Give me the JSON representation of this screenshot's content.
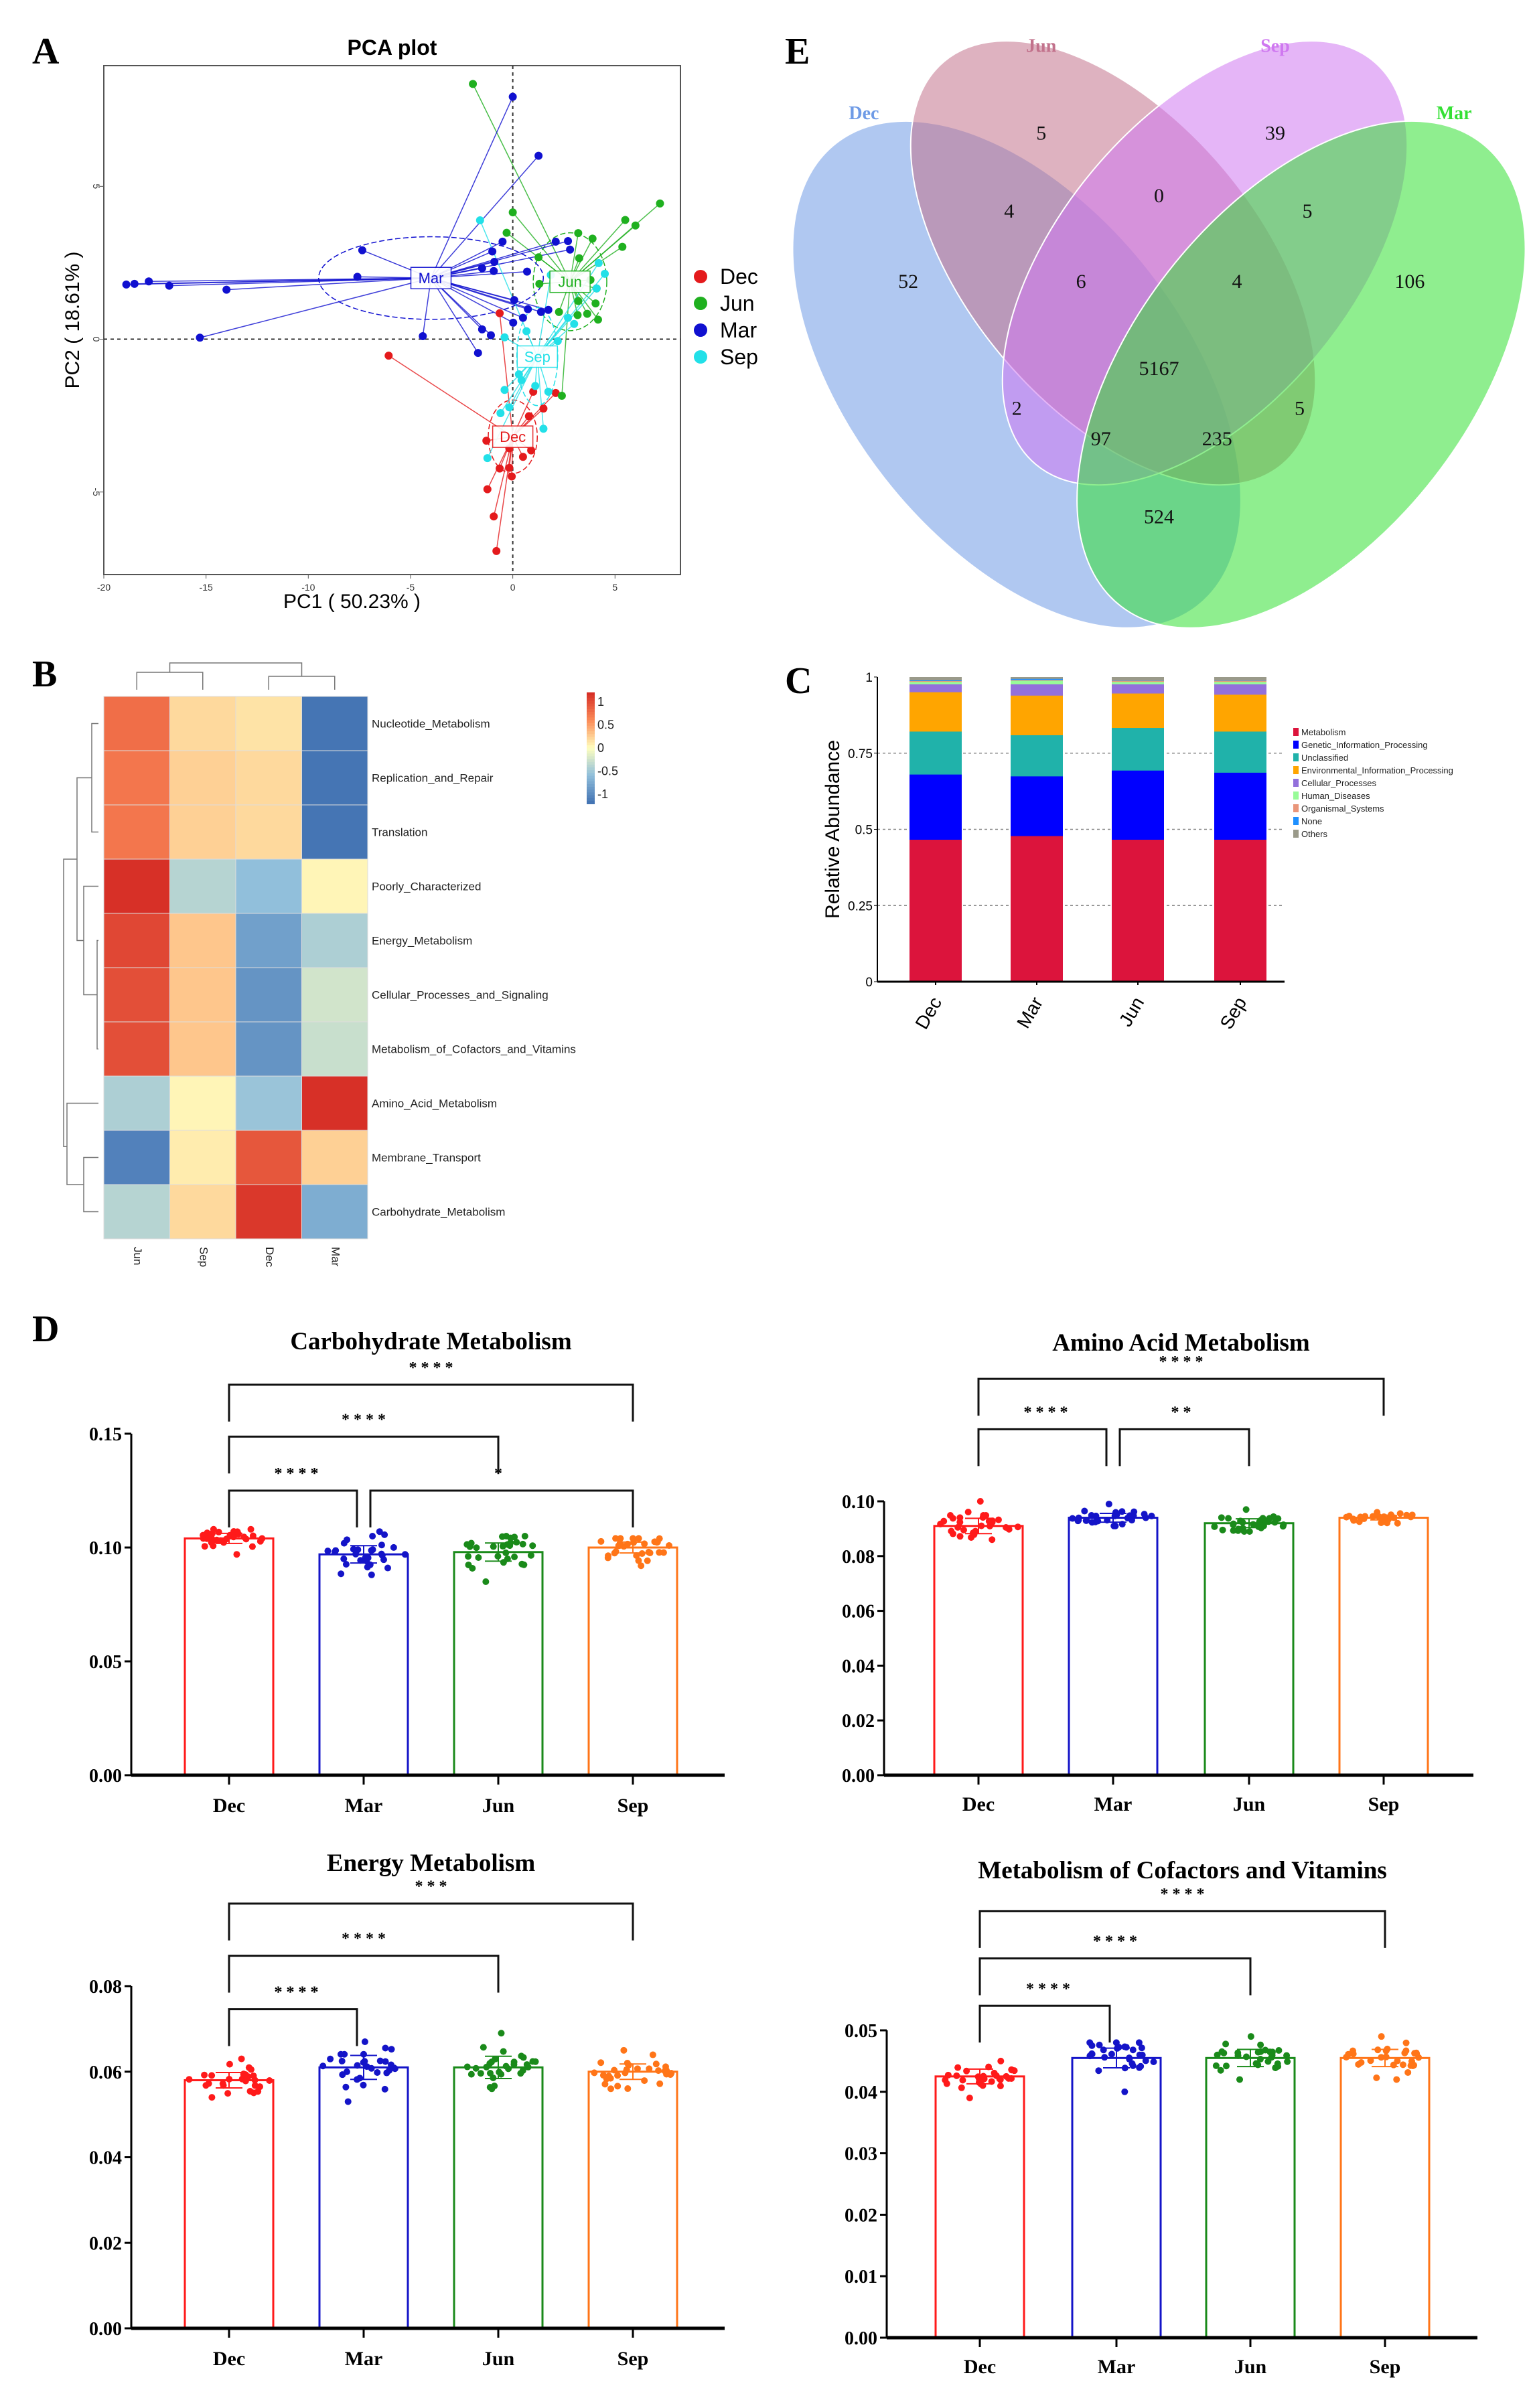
{
  "panel_labels": {
    "a": "A",
    "b": "B",
    "c": "C",
    "d": "D",
    "e": "E"
  },
  "group_colors": {
    "Dec": "#e41a1c",
    "Jun": "#1fb01f",
    "Mar": "#1010d0",
    "Sep": "#22e0e8"
  },
  "chart_data": [
    {
      "id": "pca",
      "type": "scatter",
      "title": "PCA plot",
      "xlabel": "PC1 ( 50.23% )",
      "ylabel": "PC2 ( 18.61% )",
      "xlim": [
        -20,
        8.2
      ],
      "ylim": [
        -7.7,
        8.95
      ],
      "xticks": [
        "-20",
        "-15",
        "-10",
        "-5",
        "0",
        "5"
      ],
      "yticks": [
        "-5",
        "0",
        "5"
      ],
      "legend": "right",
      "reference_lines": "dashed at x=0 and y=0",
      "series": [
        {
          "name": "Dec",
          "color": "#e41a1c",
          "centroid": [
            0,
            -3.19
          ],
          "points": [
            [
              -6.07,
              -0.54
            ],
            [
              -0.64,
              0.85
            ],
            [
              1.0,
              -1.72
            ],
            [
              2.1,
              -1.76
            ],
            [
              1.5,
              -2.27
            ],
            [
              0.79,
              -2.52
            ],
            [
              -1.29,
              -3.32
            ],
            [
              -0.17,
              -3.57
            ],
            [
              0.9,
              -3.64
            ],
            [
              0.5,
              -3.85
            ],
            [
              -0.64,
              -4.23
            ],
            [
              -0.17,
              -4.21
            ],
            [
              -0.05,
              -4.49
            ],
            [
              -1.24,
              -4.91
            ],
            [
              -0.93,
              -5.8
            ],
            [
              -0.8,
              -6.93
            ]
          ]
        },
        {
          "name": "Jun",
          "color": "#1fb01f",
          "centroid": [
            2.8,
            1.88
          ],
          "points": [
            [
              -1.95,
              8.35
            ],
            [
              0,
              4.15
            ],
            [
              -0.3,
              3.48
            ],
            [
              7.2,
              4.44
            ],
            [
              5.5,
              3.9
            ],
            [
              6,
              3.72
            ],
            [
              5.36,
              3.02
            ],
            [
              3.2,
              3.47
            ],
            [
              3.9,
              3.29
            ],
            [
              3.25,
              2.65
            ],
            [
              1.26,
              2.68
            ],
            [
              1.3,
              1.81
            ],
            [
              3.8,
              1.94
            ],
            [
              4.1,
              1.66
            ],
            [
              3.2,
              1.25
            ],
            [
              4.05,
              1.17
            ],
            [
              4.17,
              0.64
            ],
            [
              3.64,
              0.83
            ],
            [
              3.17,
              0.79
            ],
            [
              2.26,
              0.89
            ],
            [
              2.4,
              -1.85
            ]
          ]
        },
        {
          "name": "Mar",
          "color": "#1010d0",
          "centroid": [
            -4.0,
            2.0
          ],
          "points": [
            [
              0,
              7.93
            ],
            [
              1.26,
              6.0
            ],
            [
              -7.36,
              2.91
            ],
            [
              -7.6,
              2.04
            ],
            [
              -18.9,
              1.79
            ],
            [
              -18.5,
              1.81
            ],
            [
              -17.8,
              1.89
            ],
            [
              -16.8,
              1.75
            ],
            [
              -14,
              1.62
            ],
            [
              -15.3,
              0.05
            ],
            [
              -4.4,
              0.1
            ],
            [
              -1.7,
              -0.45
            ],
            [
              -1.5,
              0.32
            ],
            [
              -1.07,
              0.13
            ],
            [
              -0.5,
              3.19
            ],
            [
              -1,
              2.87
            ],
            [
              -0.9,
              2.53
            ],
            [
              -1.5,
              2.32
            ],
            [
              -0.93,
              2.23
            ],
            [
              0.7,
              2.21
            ],
            [
              0.07,
              1.28
            ],
            [
              0.02,
              0.54
            ],
            [
              0.5,
              0.7
            ],
            [
              0.74,
              0.98
            ],
            [
              1.38,
              0.89
            ],
            [
              1.74,
              0.96
            ],
            [
              2.1,
              3.19
            ],
            [
              2.7,
              3.21
            ],
            [
              2.8,
              2.93
            ]
          ]
        },
        {
          "name": "Sep",
          "color": "#22e0e8",
          "centroid": [
            1.2,
            -0.57
          ],
          "points": [
            [
              -1.6,
              3.89
            ],
            [
              1.86,
              2.1
            ],
            [
              4.2,
              2.49
            ],
            [
              4.5,
              2.14
            ],
            [
              4.1,
              1.66
            ],
            [
              2.7,
              0.7
            ],
            [
              3,
              0.5
            ],
            [
              2.2,
              -0.06
            ],
            [
              0.67,
              0.26
            ],
            [
              -0.4,
              0.06
            ],
            [
              -0.4,
              -1.66
            ],
            [
              0.3,
              -1.15
            ],
            [
              1.1,
              -1.53
            ],
            [
              -0.6,
              -2.42
            ],
            [
              -0.17,
              -2.23
            ],
            [
              1.5,
              -2.93
            ],
            [
              -1.24,
              -3.89
            ],
            [
              0.43,
              -1.34
            ],
            [
              1.74,
              -1.72
            ]
          ]
        }
      ]
    },
    {
      "id": "heatmap",
      "type": "heatmap",
      "columns": [
        "Jun",
        "Sep",
        "Dec",
        "Mar"
      ],
      "rows": [
        "Nucleotide_Metabolism",
        "Replication_and_Repair",
        "Translation",
        "Poorly_Characterized",
        "Energy_Metabolism",
        "Cellular_Processes_and_Signaling",
        "Metabolism_of_Cofactors_and_Vitamins",
        "Amino_Acid_Metabolism",
        "Membrane_Transport",
        "Carbohydrate_Metabolism"
      ],
      "values": [
        [
          0.8,
          0.2,
          0.15,
          -1.2
        ],
        [
          0.75,
          0.25,
          0.2,
          -1.2
        ],
        [
          0.75,
          0.25,
          0.2,
          -1.2
        ],
        [
          1.2,
          -0.4,
          -0.6,
          0.05
        ],
        [
          1.05,
          0.3,
          -0.85,
          -0.45
        ],
        [
          1.0,
          0.3,
          -0.95,
          -0.25
        ],
        [
          1.0,
          0.3,
          -0.95,
          -0.3
        ],
        [
          -0.45,
          0.05,
          -0.55,
          1.2
        ],
        [
          -1.1,
          0.1,
          0.95,
          0.25
        ],
        [
          -0.4,
          0.2,
          1.15,
          -0.75
        ]
      ],
      "color_range": [
        -1.2,
        1.2
      ],
      "colorbar_ticks": [
        "1",
        "0.5",
        "0",
        "-0.5",
        "-1"
      ],
      "colorscale": [
        "#4575b4",
        "#91bfdb",
        "#ffffbf",
        "#fc8d59",
        "#d73027"
      ]
    },
    {
      "id": "stacked",
      "type": "bar",
      "stacked": true,
      "ylabel": "Relative Abundance",
      "ylim": [
        0,
        1
      ],
      "yticks": [
        "0",
        "0.25",
        "0.5",
        "0.75",
        "1"
      ],
      "grid": "dashed horizontal at 0.25, 0.5, 0.75",
      "categories": [
        "Dec",
        "Mar",
        "Jun",
        "Sep"
      ],
      "legend": "right",
      "series": [
        {
          "name": "Metabolism",
          "color": "#dc143c",
          "values": [
            0.467,
            0.479,
            0.467,
            0.467
          ]
        },
        {
          "name": "Genetic_Information_Processing",
          "color": "#0000ff",
          "values": [
            0.214,
            0.196,
            0.227,
            0.22
          ]
        },
        {
          "name": "Unclassified",
          "color": "#20b2aa",
          "values": [
            0.141,
            0.135,
            0.14,
            0.135
          ]
        },
        {
          "name": "Environmental_Information_Processing",
          "color": "#ffa500",
          "values": [
            0.129,
            0.13,
            0.113,
            0.121
          ]
        },
        {
          "name": "Cellular_Processes",
          "color": "#9370db",
          "values": [
            0.026,
            0.037,
            0.03,
            0.034
          ]
        },
        {
          "name": "Human_Diseases",
          "color": "#98fb98",
          "values": [
            0.008,
            0.012,
            0.008,
            0.008
          ]
        },
        {
          "name": "Organismal_Systems",
          "color": "#e9967a",
          "values": [
            0.003,
            0.002,
            0.004,
            0.004
          ]
        },
        {
          "name": "None",
          "color": "#1e90ff",
          "values": [
            0.002,
            0.004,
            0.001,
            0.001
          ]
        },
        {
          "name": "Others",
          "color": "#9a9a8a",
          "values": [
            0.01,
            0.005,
            0.01,
            0.01
          ]
        }
      ]
    },
    {
      "id": "venn",
      "type": "venn",
      "sets": [
        {
          "name": "Dec",
          "color": "#6f9be6"
        },
        {
          "name": "Jun",
          "color": "#c2728c"
        },
        {
          "name": "Sep",
          "color": "#cf78f0"
        },
        {
          "name": "Mar",
          "color": "#33e033"
        }
      ],
      "regions": [
        {
          "sets": [
            "Jun"
          ],
          "value": "5"
        },
        {
          "sets": [
            "Sep"
          ],
          "value": "39"
        },
        {
          "sets": [
            "Dec"
          ],
          "value": "52"
        },
        {
          "sets": [
            "Dec",
            "Jun"
          ],
          "value": "4"
        },
        {
          "sets": [
            "Jun",
            "Sep"
          ],
          "value": "0"
        },
        {
          "sets": [
            "Sep",
            "Mar"
          ],
          "value": "5"
        },
        {
          "sets": [
            "Mar"
          ],
          "value": "106"
        },
        {
          "sets": [
            "Dec",
            "Jun",
            "Sep"
          ],
          "value": "6"
        },
        {
          "sets": [
            "Jun",
            "Sep",
            "Mar"
          ],
          "value": "4"
        },
        {
          "sets": [
            "Dec",
            "Jun",
            "Sep",
            "Mar"
          ],
          "value": "5167"
        },
        {
          "sets": [
            "Dec",
            "Sep"
          ],
          "value": "2"
        },
        {
          "sets": [
            "Dec",
            "Sep",
            "Mar"
          ],
          "value": "97"
        },
        {
          "sets": [
            "Dec",
            "Jun",
            "Mar"
          ],
          "value": "235"
        },
        {
          "sets": [
            "Jun",
            "Mar"
          ],
          "value": "5"
        },
        {
          "sets": [
            "Dec",
            "Mar"
          ],
          "value": "524"
        }
      ]
    },
    {
      "id": "carb",
      "type": "bar",
      "title": "Carbohydrate Metabolism",
      "categories": [
        "Dec",
        "Mar",
        "Jun",
        "Sep"
      ],
      "colors": [
        "#ff1a1a",
        "#1414c8",
        "#1a8a1a",
        "#ff7518"
      ],
      "ylim": [
        0,
        0.15
      ],
      "yticks": [
        "0.00",
        "0.05",
        "0.10",
        "0.15"
      ],
      "means": [
        0.104,
        0.097,
        0.098,
        0.1
      ],
      "ranges": [
        [
          0.097,
          0.108
        ],
        [
          0.088,
          0.107
        ],
        [
          0.085,
          0.105
        ],
        [
          0.092,
          0.104
        ]
      ],
      "significance": [
        {
          "from": "Dec",
          "to": "Mar",
          "y": 0.125,
          "label": "* * * *"
        },
        {
          "from": "Mar",
          "to": "Sep",
          "y": 0.125,
          "label": "*",
          "label_at": "Jun"
        },
        {
          "from": "Dec",
          "to": "Jun",
          "y": 0.1487,
          "label": "* * * *"
        },
        {
          "from": "Dec",
          "to": "Sep",
          "y": 0.1715,
          "label": "* * * *"
        }
      ]
    },
    {
      "id": "amino",
      "type": "bar",
      "title": "Amino Acid Metabolism",
      "categories": [
        "Dec",
        "Mar",
        "Jun",
        "Sep"
      ],
      "colors": [
        "#ff1a1a",
        "#1414c8",
        "#1a8a1a",
        "#ff7518"
      ],
      "ylim": [
        0,
        0.1
      ],
      "yticks": [
        "0.00",
        "0.02",
        "0.04",
        "0.06",
        "0.08",
        "0.10"
      ],
      "means": [
        0.091,
        0.094,
        0.092,
        0.094
      ],
      "ranges": [
        [
          0.086,
          0.1
        ],
        [
          0.091,
          0.099
        ],
        [
          0.089,
          0.097
        ],
        [
          0.092,
          0.096
        ]
      ],
      "significance": [
        {
          "from": "Dec",
          "to": "Mar",
          "y": 0.1263,
          "label": "* * * *"
        },
        {
          "from": "Mar",
          "to": "Jun",
          "y": 0.1263,
          "label": "* *"
        },
        {
          "from": "Dec",
          "to": "Sep",
          "y": 0.1447,
          "label": "* * * *"
        }
      ]
    },
    {
      "id": "energy",
      "type": "bar",
      "title": "Energy Metabolism",
      "categories": [
        "Dec",
        "Mar",
        "Jun",
        "Sep"
      ],
      "colors": [
        "#ff1a1a",
        "#1414c8",
        "#1a8a1a",
        "#ff7518"
      ],
      "ylim": [
        0,
        0.08
      ],
      "yticks": [
        "0.00",
        "0.02",
        "0.04",
        "0.06",
        "0.08"
      ],
      "means": [
        0.058,
        0.061,
        0.061,
        0.06
      ],
      "ranges": [
        [
          0.054,
          0.063
        ],
        [
          0.053,
          0.067
        ],
        [
          0.056,
          0.069
        ],
        [
          0.056,
          0.065
        ]
      ],
      "significance": [
        {
          "from": "Dec",
          "to": "Mar",
          "y": 0.0746,
          "label": "* * * *"
        },
        {
          "from": "Dec",
          "to": "Jun",
          "y": 0.0871,
          "label": "* * * *"
        },
        {
          "from": "Dec",
          "to": "Sep",
          "y": 0.0993,
          "label": "* * *"
        }
      ]
    },
    {
      "id": "cofactors",
      "type": "bar",
      "title": "Metabolism of Cofactors and Vitamins",
      "categories": [
        "Dec",
        "Mar",
        "Jun",
        "Sep"
      ],
      "colors": [
        "#ff1a1a",
        "#1414c8",
        "#1a8a1a",
        "#ff7518"
      ],
      "ylim": [
        0,
        0.05
      ],
      "yticks": [
        "0.00",
        "0.01",
        "0.02",
        "0.03",
        "0.04",
        "0.05"
      ],
      "means": [
        0.0425,
        0.0455,
        0.0455,
        0.0455
      ],
      "ranges": [
        [
          0.039,
          0.045
        ],
        [
          0.04,
          0.048
        ],
        [
          0.042,
          0.049
        ],
        [
          0.042,
          0.049
        ]
      ],
      "significance": [
        {
          "from": "Dec",
          "to": "Mar",
          "y": 0.054,
          "label": "* * * *"
        },
        {
          "from": "Dec",
          "to": "Jun",
          "y": 0.0617,
          "label": "* * * *"
        },
        {
          "from": "Dec",
          "to": "Sep",
          "y": 0.0694,
          "label": "* * * *"
        }
      ]
    }
  ]
}
